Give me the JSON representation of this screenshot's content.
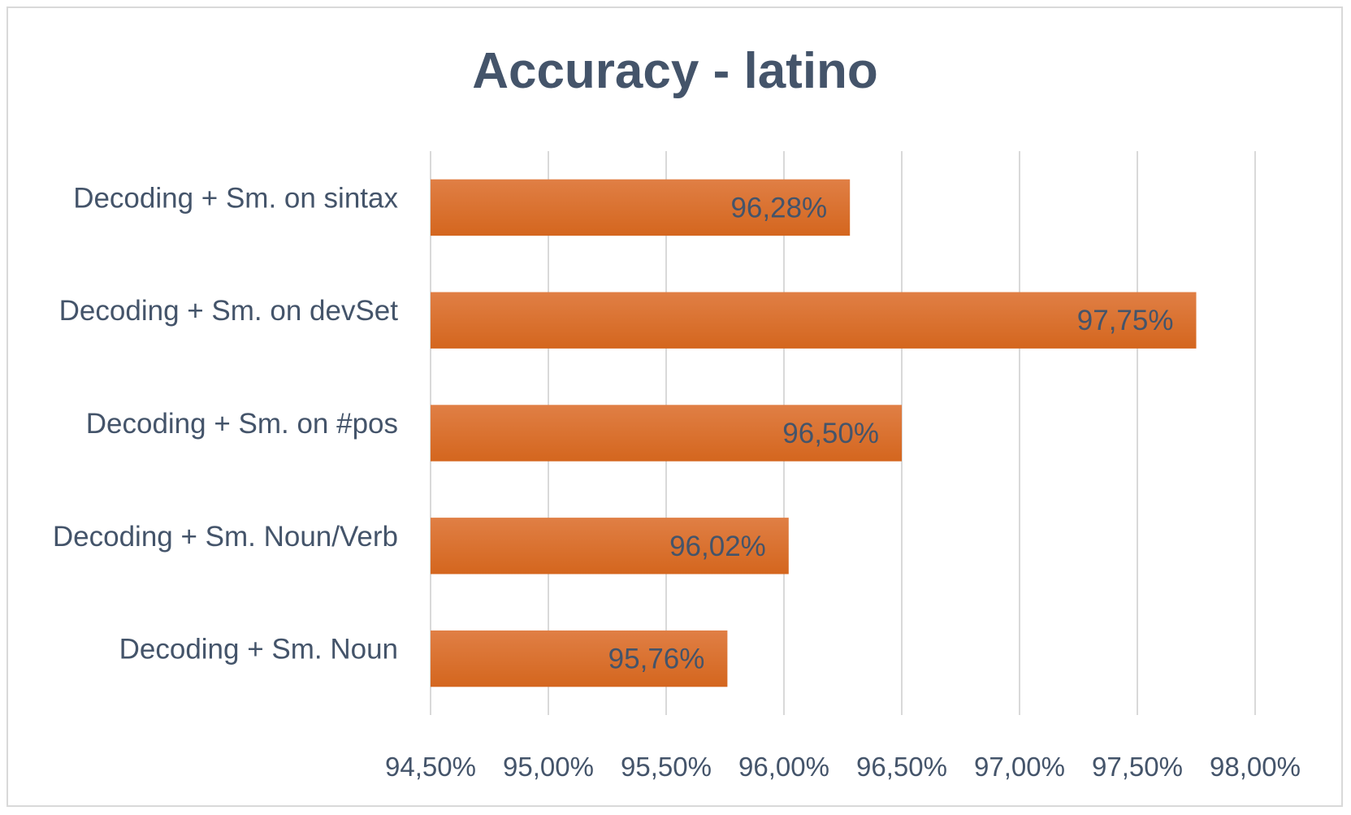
{
  "chart_data": {
    "type": "bar",
    "orientation": "horizontal",
    "title": "Accuracy - latino",
    "xlabel": "",
    "ylabel": "",
    "categories": [
      "Decoding + Sm. on sintax",
      "Decoding + Sm. on devSet",
      "Decoding + Sm. on #pos",
      "Decoding + Sm. Noun/Verb",
      "Decoding + Sm. Noun"
    ],
    "values": [
      96.28,
      97.75,
      96.5,
      96.02,
      95.76
    ],
    "data_labels": [
      "96,28%",
      "97,75%",
      "96,50%",
      "96,02%",
      "95,76%"
    ],
    "xlim": [
      94.5,
      98.0
    ],
    "x_ticks": [
      94.5,
      95.0,
      95.5,
      96.0,
      96.5,
      97.0,
      97.5,
      98.0
    ],
    "x_tick_labels": [
      "94,50%",
      "95,00%",
      "95,50%",
      "96,00%",
      "96,50%",
      "97,00%",
      "97,50%",
      "98,00%"
    ],
    "grid": "vertical",
    "legend": "none",
    "bar_color": "#d4661e",
    "bar_color_light": "#e07f45",
    "text_color": "#44546a",
    "grid_color": "#d9d9d9"
  }
}
